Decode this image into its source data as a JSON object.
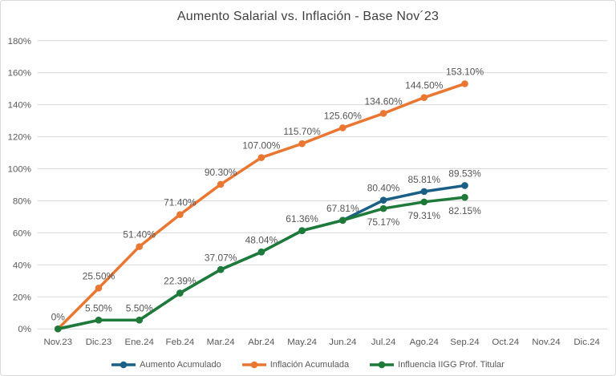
{
  "title": "Aumento Salarial vs. Inflación - Base Nov´23",
  "colors": {
    "grid": "#D9D9D9",
    "border": "#D9D9D9",
    "axis_text": "#595959",
    "data_label_text": "#555555",
    "title_text": "#404040",
    "background": "#FFFFFF",
    "series_blue": "#1A5F86",
    "series_orange": "#E97732",
    "series_green": "#1E7A38"
  },
  "chart_data": {
    "type": "line",
    "title": "Aumento Salarial vs. Inflación - Base Nov´23",
    "categories": [
      "Nov.23",
      "Dic.23",
      "Ene.24",
      "Feb.24",
      "Mar.24",
      "Abr.24",
      "May.24",
      "Jun.24",
      "Jul.24",
      "Ago.24",
      "Sep.24",
      "Oct.24",
      "Nov.24",
      "Dic.24"
    ],
    "xlabel": "",
    "ylabel": "",
    "ylim": [
      0,
      180
    ],
    "ytick_step": 20,
    "ytick_suffix": "%",
    "grid": true,
    "legend_position": "bottom",
    "marker": "circle",
    "series": [
      {
        "name": "Aumento Acumulado",
        "color": "#1A5F86",
        "values": [
          0,
          5.5,
          5.5,
          22.39,
          37.07,
          48.04,
          61.36,
          67.81,
          80.4,
          85.81,
          89.53,
          null,
          null,
          null
        ],
        "labels": [
          "",
          "",
          "",
          "",
          "",
          "",
          "",
          "",
          "80.40%",
          "85.81%",
          "89.53%",
          "",
          "",
          ""
        ],
        "label_pos": [
          "above",
          "above",
          "above",
          "above",
          "above",
          "above",
          "above",
          "above",
          "above",
          "above",
          "above"
        ]
      },
      {
        "name": "Inflación Acumulada",
        "color": "#E97732",
        "values": [
          0,
          25.5,
          51.4,
          71.4,
          90.3,
          107.0,
          115.7,
          125.6,
          134.6,
          144.5,
          153.1,
          null,
          null,
          null
        ],
        "labels": [
          "",
          "25.50%",
          "51.40%",
          "71.40%",
          "90.30%",
          "107.00%",
          "115.70%",
          "125.60%",
          "134.60%",
          "144.50%",
          "153.10%",
          "",
          "",
          ""
        ],
        "label_pos": [
          "above",
          "above",
          "above",
          "above",
          "above",
          "above",
          "above",
          "above",
          "above",
          "above",
          "above"
        ]
      },
      {
        "name": "Influencia IIGG Prof. Titular",
        "color": "#1E7A38",
        "values": [
          0,
          5.5,
          5.5,
          22.39,
          37.07,
          48.04,
          61.36,
          67.81,
          75.17,
          79.31,
          82.15,
          null,
          null,
          null
        ],
        "labels": [
          "0%",
          "5.50%",
          "5.50%",
          "22.39%",
          "37.07%",
          "48.04%",
          "61.36%",
          "67.81%",
          "75.17%",
          "79.31%",
          "82.15%",
          "",
          "",
          ""
        ],
        "label_pos": [
          "above",
          "above",
          "above",
          "above",
          "above",
          "above",
          "above",
          "above",
          "below",
          "below",
          "below"
        ]
      }
    ]
  }
}
